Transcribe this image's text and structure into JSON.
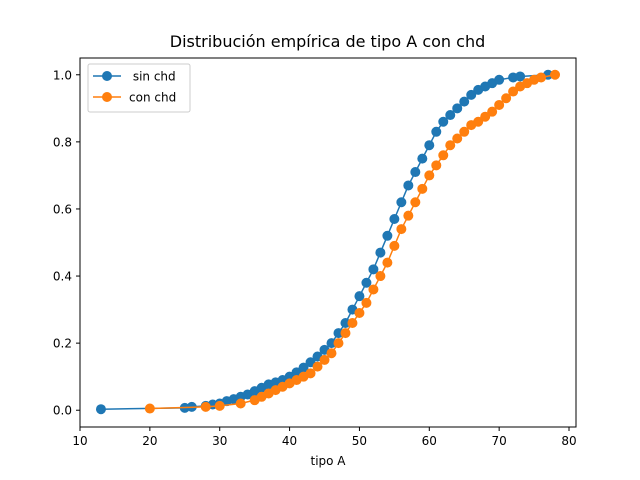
{
  "colors": {
    "series1": "#1f77b4",
    "series2": "#ff7f0e",
    "axis": "#000000",
    "background": "#ffffff"
  },
  "chart_data": {
    "type": "line",
    "title": "Distribución empírica de tipo A con chd",
    "xlabel": "tipo A",
    "ylabel": "",
    "xlim": [
      10,
      81
    ],
    "ylim": [
      -0.05,
      1.05
    ],
    "x_ticks": [
      10,
      20,
      30,
      40,
      50,
      60,
      70,
      80
    ],
    "y_ticks": [
      "0.0",
      "0.2",
      "0.4",
      "0.6",
      "0.8",
      "1.0"
    ],
    "grid": false,
    "legend_position": "top-left",
    "markers": true,
    "series": [
      {
        "name": " sin chd",
        "color": "#1f77b4",
        "points": [
          [
            13,
            0.003
          ],
          [
            25,
            0.007
          ],
          [
            26,
            0.01
          ],
          [
            28,
            0.013
          ],
          [
            29,
            0.017
          ],
          [
            30,
            0.02
          ],
          [
            31,
            0.027
          ],
          [
            32,
            0.033
          ],
          [
            33,
            0.04
          ],
          [
            34,
            0.047
          ],
          [
            35,
            0.057
          ],
          [
            36,
            0.067
          ],
          [
            37,
            0.077
          ],
          [
            38,
            0.083
          ],
          [
            39,
            0.09
          ],
          [
            40,
            0.1
          ],
          [
            41,
            0.113
          ],
          [
            42,
            0.127
          ],
          [
            43,
            0.143
          ],
          [
            44,
            0.16
          ],
          [
            45,
            0.18
          ],
          [
            46,
            0.2
          ],
          [
            47,
            0.23
          ],
          [
            48,
            0.26
          ],
          [
            49,
            0.3
          ],
          [
            50,
            0.34
          ],
          [
            51,
            0.38
          ],
          [
            52,
            0.42
          ],
          [
            53,
            0.47
          ],
          [
            54,
            0.52
          ],
          [
            55,
            0.57
          ],
          [
            56,
            0.62
          ],
          [
            57,
            0.67
          ],
          [
            58,
            0.71
          ],
          [
            59,
            0.75
          ],
          [
            60,
            0.79
          ],
          [
            61,
            0.83
          ],
          [
            62,
            0.86
          ],
          [
            63,
            0.88
          ],
          [
            64,
            0.9
          ],
          [
            65,
            0.92
          ],
          [
            66,
            0.94
          ],
          [
            67,
            0.955
          ],
          [
            68,
            0.965
          ],
          [
            69,
            0.975
          ],
          [
            70,
            0.985
          ],
          [
            72,
            0.992
          ],
          [
            73,
            0.995
          ],
          [
            77,
            1.0
          ]
        ]
      },
      {
        "name": "con chd",
        "color": "#ff7f0e",
        "points": [
          [
            20,
            0.005
          ],
          [
            28,
            0.01
          ],
          [
            30,
            0.013
          ],
          [
            33,
            0.02
          ],
          [
            35,
            0.03
          ],
          [
            36,
            0.04
          ],
          [
            37,
            0.05
          ],
          [
            38,
            0.06
          ],
          [
            39,
            0.07
          ],
          [
            40,
            0.08
          ],
          [
            41,
            0.09
          ],
          [
            42,
            0.1
          ],
          [
            43,
            0.11
          ],
          [
            44,
            0.13
          ],
          [
            45,
            0.15
          ],
          [
            46,
            0.17
          ],
          [
            47,
            0.2
          ],
          [
            48,
            0.23
          ],
          [
            49,
            0.26
          ],
          [
            50,
            0.29
          ],
          [
            51,
            0.32
          ],
          [
            52,
            0.36
          ],
          [
            53,
            0.4
          ],
          [
            54,
            0.44
          ],
          [
            55,
            0.49
          ],
          [
            56,
            0.54
          ],
          [
            57,
            0.58
          ],
          [
            58,
            0.62
          ],
          [
            59,
            0.66
          ],
          [
            60,
            0.7
          ],
          [
            61,
            0.73
          ],
          [
            62,
            0.76
          ],
          [
            63,
            0.79
          ],
          [
            64,
            0.81
          ],
          [
            65,
            0.83
          ],
          [
            66,
            0.85
          ],
          [
            67,
            0.86
          ],
          [
            68,
            0.875
          ],
          [
            69,
            0.89
          ],
          [
            70,
            0.91
          ],
          [
            71,
            0.93
          ],
          [
            72,
            0.95
          ],
          [
            73,
            0.965
          ],
          [
            74,
            0.975
          ],
          [
            75,
            0.985
          ],
          [
            76,
            0.992
          ],
          [
            78,
            1.0
          ]
        ]
      }
    ]
  }
}
